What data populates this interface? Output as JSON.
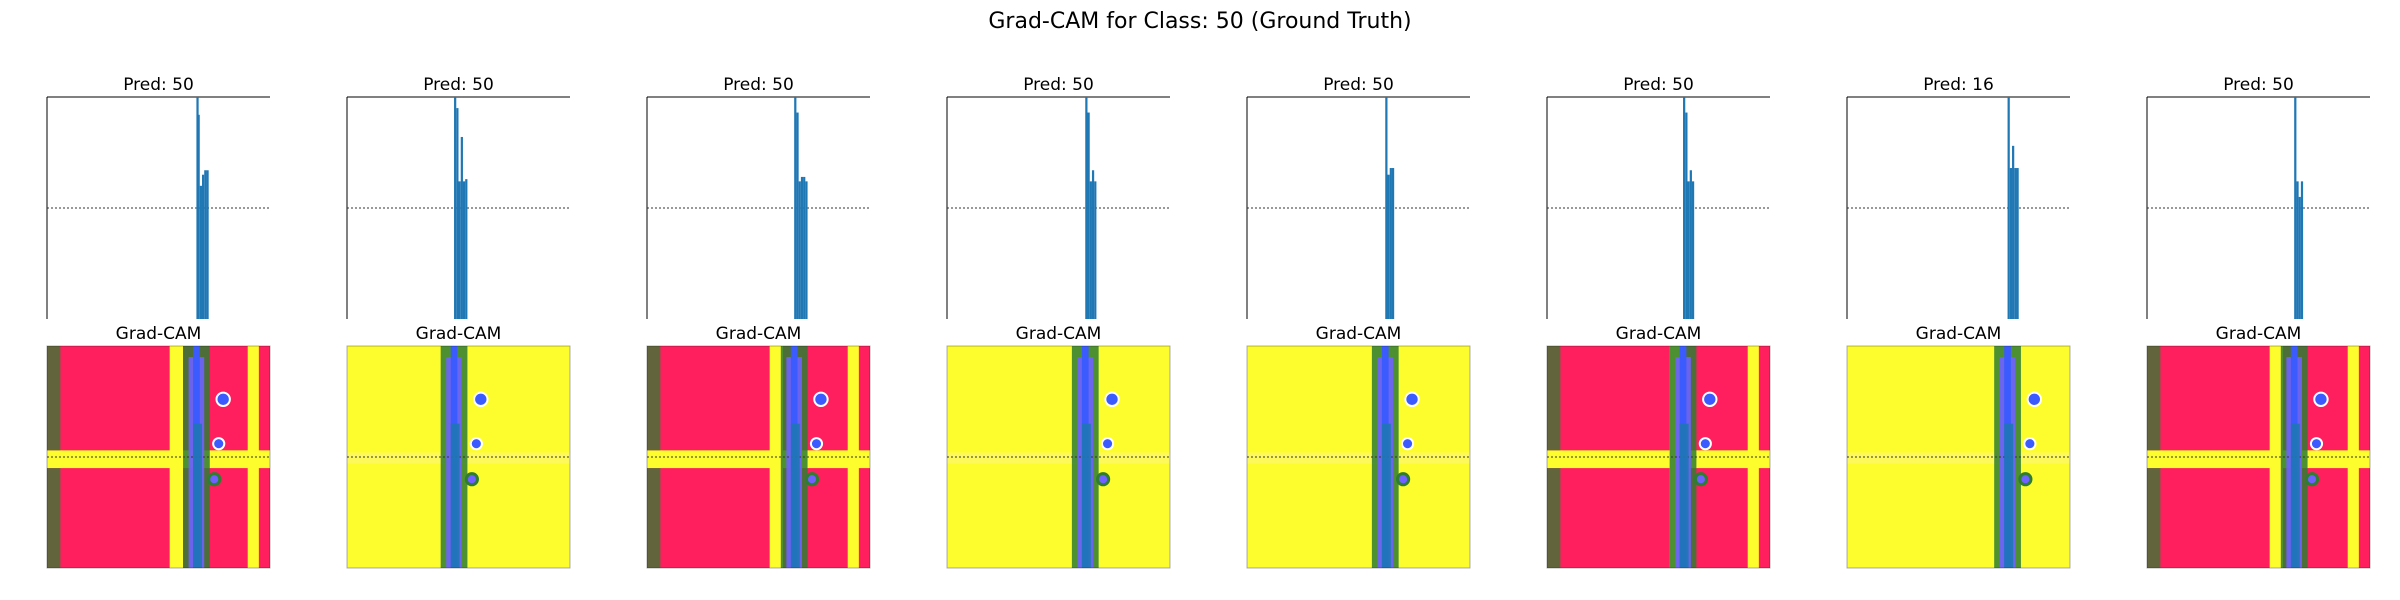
{
  "figure_title": "Grad-CAM for Class: 50 (Ground Truth)",
  "cam_title": "Grad-CAM",
  "colors": {
    "bar": "#1f77b4",
    "cam_red": "#ff1f5e",
    "cam_yellow": "#fdfd2e",
    "cam_green": "#2e7d32",
    "cam_blue": "#3b5bff",
    "axis": "#000000"
  },
  "chart_data": [
    {
      "type": "bar",
      "title": "Pred: 50",
      "cam": "red",
      "values": [
        {
          "x": 0.67,
          "y": 1.0
        },
        {
          "x": 0.675,
          "y": 0.92
        },
        {
          "x": 0.685,
          "y": 0.6
        },
        {
          "x": 0.695,
          "y": 0.65
        },
        {
          "x": 0.705,
          "y": 0.67
        },
        {
          "x": 0.715,
          "y": 0.67
        }
      ]
    },
    {
      "type": "bar",
      "title": "Pred: 50",
      "cam": "yellow",
      "values": [
        {
          "x": 0.48,
          "y": 1.0
        },
        {
          "x": 0.49,
          "y": 0.95
        },
        {
          "x": 0.5,
          "y": 0.62
        },
        {
          "x": 0.51,
          "y": 0.82
        },
        {
          "x": 0.52,
          "y": 0.62
        },
        {
          "x": 0.53,
          "y": 0.63
        }
      ]
    },
    {
      "type": "bar",
      "title": "Pred: 50",
      "cam": "red",
      "values": [
        {
          "x": 0.66,
          "y": 1.0
        },
        {
          "x": 0.67,
          "y": 0.93
        },
        {
          "x": 0.68,
          "y": 0.62
        },
        {
          "x": 0.69,
          "y": 0.64
        },
        {
          "x": 0.7,
          "y": 0.64
        },
        {
          "x": 0.71,
          "y": 0.62
        }
      ]
    },
    {
      "type": "bar",
      "title": "Pred: 50",
      "cam": "yellow",
      "values": [
        {
          "x": 0.62,
          "y": 1.0
        },
        {
          "x": 0.63,
          "y": 0.93
        },
        {
          "x": 0.64,
          "y": 0.62
        },
        {
          "x": 0.65,
          "y": 0.67
        },
        {
          "x": 0.66,
          "y": 0.62
        }
      ]
    },
    {
      "type": "bar",
      "title": "Pred: 50",
      "cam": "yellow",
      "values": [
        {
          "x": 0.62,
          "y": 1.0
        },
        {
          "x": 0.63,
          "y": 0.65
        },
        {
          "x": 0.64,
          "y": 0.68
        },
        {
          "x": 0.65,
          "y": 0.68
        }
      ]
    },
    {
      "type": "bar",
      "title": "Pred: 50",
      "cam": "red",
      "values": [
        {
          "x": 0.61,
          "y": 1.0
        },
        {
          "x": 0.62,
          "y": 0.93
        },
        {
          "x": 0.63,
          "y": 0.62
        },
        {
          "x": 0.64,
          "y": 0.67
        },
        {
          "x": 0.65,
          "y": 0.62
        }
      ]
    },
    {
      "type": "bar",
      "title": "Pred: 16",
      "cam": "yellow",
      "values": [
        {
          "x": 0.72,
          "y": 1.0
        },
        {
          "x": 0.73,
          "y": 0.68
        },
        {
          "x": 0.74,
          "y": 0.78
        },
        {
          "x": 0.75,
          "y": 0.68
        },
        {
          "x": 0.76,
          "y": 0.68
        }
      ]
    },
    {
      "type": "bar",
      "title": "Pred: 50",
      "cam": "red",
      "values": [
        {
          "x": 0.66,
          "y": 1.0
        },
        {
          "x": 0.67,
          "y": 0.62
        },
        {
          "x": 0.68,
          "y": 0.55
        },
        {
          "x": 0.69,
          "y": 0.62
        }
      ]
    }
  ]
}
